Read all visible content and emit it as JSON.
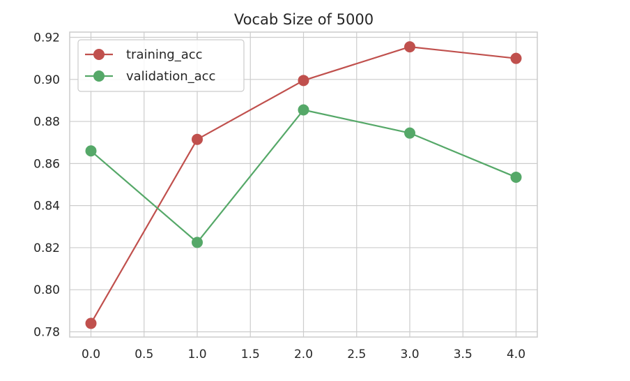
{
  "chart_data": {
    "type": "line",
    "title": "Vocab Size of 5000",
    "xlabel": "",
    "ylabel": "",
    "x": [
      0,
      1,
      2,
      3,
      4
    ],
    "xlim": [
      -0.2,
      4.2
    ],
    "ylim": [
      0.7775,
      0.9225
    ],
    "xticks": [
      0.0,
      0.5,
      1.0,
      1.5,
      2.0,
      2.5,
      3.0,
      3.5,
      4.0
    ],
    "xtick_labels": [
      "0.0",
      "0.5",
      "1.0",
      "1.5",
      "2.0",
      "2.5",
      "3.0",
      "3.5",
      "4.0"
    ],
    "yticks": [
      0.78,
      0.8,
      0.82,
      0.84,
      0.86,
      0.88,
      0.9,
      0.92
    ],
    "ytick_labels": [
      "0.78",
      "0.80",
      "0.82",
      "0.84",
      "0.86",
      "0.88",
      "0.90",
      "0.92"
    ],
    "grid": true,
    "legend_position": "top-left",
    "series": [
      {
        "name": "training_acc",
        "color": "#c0504d",
        "values": [
          0.784,
          0.8715,
          0.8995,
          0.9155,
          0.91
        ]
      },
      {
        "name": "validation_acc",
        "color": "#55a868",
        "values": [
          0.866,
          0.8225,
          0.8855,
          0.8745,
          0.8535
        ]
      }
    ]
  }
}
